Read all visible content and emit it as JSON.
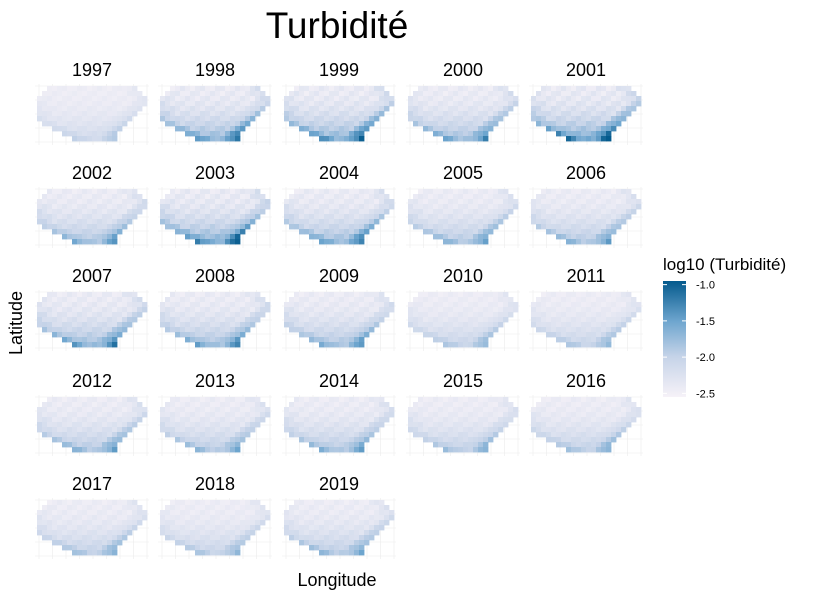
{
  "chart_data": {
    "type": "heatmap",
    "title": "Turbidité",
    "xlabel": "Longitude",
    "ylabel": "Latitude",
    "panels": [
      "1997",
      "1998",
      "1999",
      "2000",
      "2001",
      "2002",
      "2003",
      "2004",
      "2005",
      "2006",
      "2007",
      "2008",
      "2009",
      "2010",
      "2011",
      "2012",
      "2013",
      "2014",
      "2015",
      "2016",
      "2017",
      "2018",
      "2019"
    ],
    "colorbar": {
      "title": "log10 (Turbidité)",
      "ticks": [
        "-1.0",
        "-1.5",
        "-2.0",
        "-2.5"
      ],
      "tick_values": [
        -1.0,
        -1.5,
        -2.0,
        -2.5
      ],
      "range": [
        -2.55,
        -0.95
      ],
      "low_color": "#f6f2f8",
      "high_color": "#045a8d"
    },
    "panel_intensity": [
      0.35,
      0.8,
      0.85,
      0.7,
      0.95,
      0.65,
      0.9,
      0.75,
      0.6,
      0.6,
      0.75,
      0.7,
      0.65,
      0.45,
      0.45,
      0.6,
      0.55,
      0.6,
      0.5,
      0.5,
      0.5,
      0.45,
      0.55
    ],
    "grid": true,
    "legend_position": "right"
  }
}
